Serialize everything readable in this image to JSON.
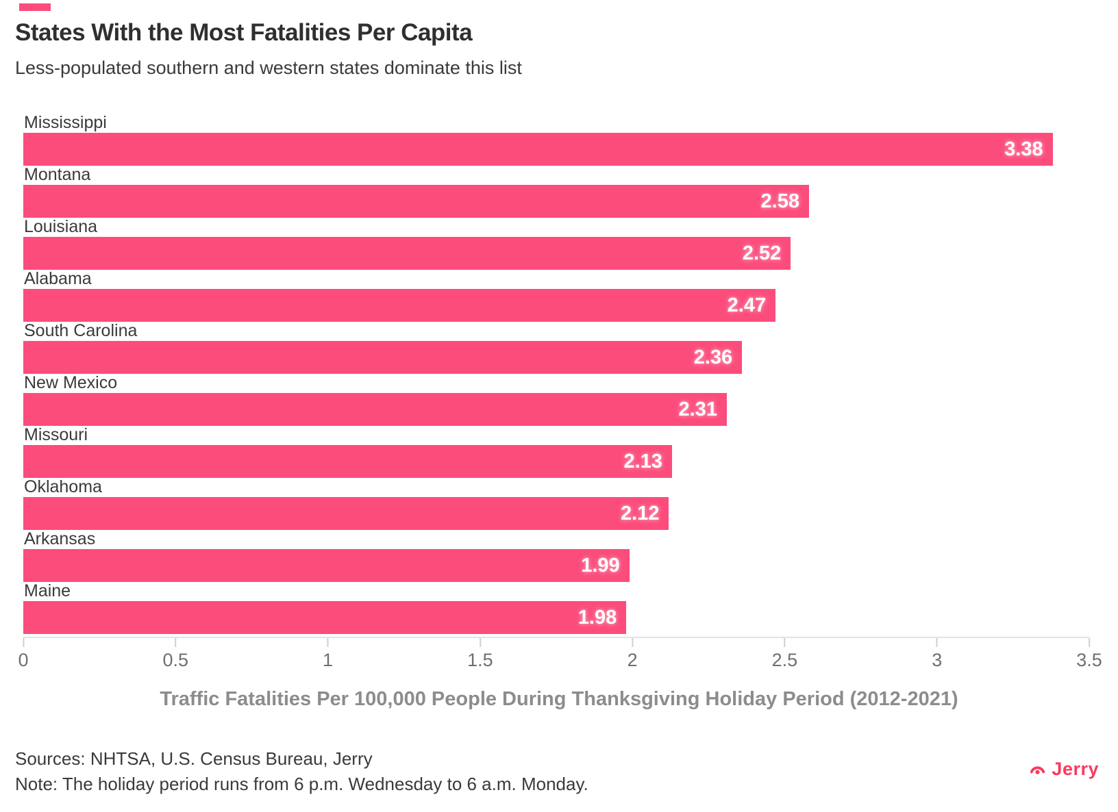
{
  "header": {
    "title": "States With the Most Fatalities Per Capita",
    "subtitle": "Less-populated southern and western states dominate this list"
  },
  "chart_data": {
    "type": "bar",
    "orientation": "horizontal",
    "title": "States With the Most Fatalities Per Capita",
    "subtitle": "Less-populated southern and western states dominate this list",
    "categories": [
      "Mississippi",
      "Montana",
      "Louisiana",
      "Alabama",
      "South Carolina",
      "New Mexico",
      "Missouri",
      "Oklahoma",
      "Arkansas",
      "Maine"
    ],
    "values": [
      3.38,
      2.58,
      2.52,
      2.47,
      2.36,
      2.31,
      2.13,
      2.12,
      1.99,
      1.98
    ],
    "value_labels": [
      "3.38",
      "2.58",
      "2.52",
      "2.47",
      "2.36",
      "2.31",
      "2.13",
      "2.12",
      "1.99",
      "1.98"
    ],
    "xlabel": "Traffic Fatalities Per 100,000 People During Thanksgiving Holiday Period (2012-2021)",
    "ylabel": "",
    "xlim": [
      0,
      3.5
    ],
    "x_ticks": [
      0,
      0.5,
      1,
      1.5,
      2,
      2.5,
      3,
      3.5
    ],
    "x_tick_labels": [
      "0",
      "0.5",
      "1",
      "1.5",
      "2",
      "2.5",
      "3",
      "3.5"
    ],
    "grid": "off",
    "legend": "none",
    "bar_color": "#FC4C7C",
    "value_label_color": "#FFFFFF"
  },
  "footer": {
    "sources": "Sources: NHTSA, U.S. Census Bureau, Jerry",
    "note": "Note: The holiday period runs from 6 p.m. Wednesday to 6 a.m. Monday.",
    "brand": "Jerry",
    "brand_color": "#FB3A5D"
  }
}
